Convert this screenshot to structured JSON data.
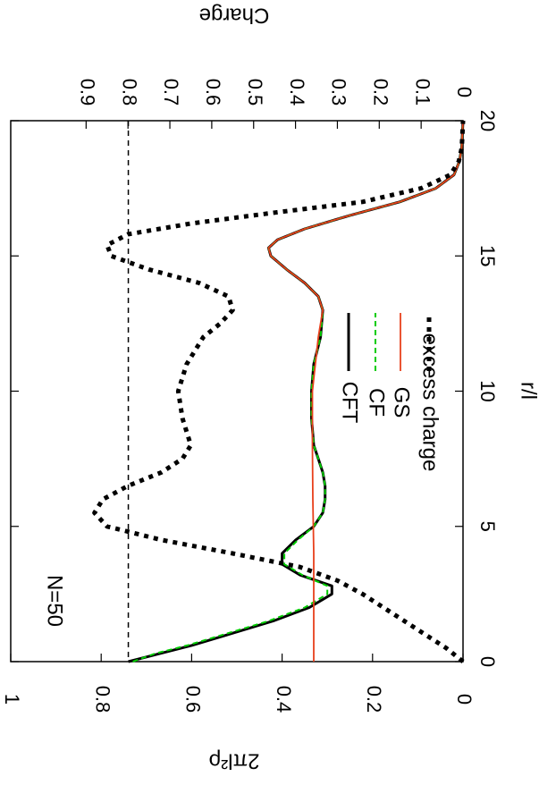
{
  "chart_data": {
    "type": "line",
    "orientation": "rotated-90-clockwise",
    "annotation": "N=50",
    "xlabel": "r/l",
    "ylabel": "2πl²ρ",
    "y2label": "Charge",
    "xlim": [
      0,
      20
    ],
    "ylim": [
      0,
      1
    ],
    "y2lim": [
      0,
      0.9
    ],
    "x_ticks": [
      0,
      5,
      10,
      15,
      20
    ],
    "y_ticks": [
      0,
      0.2,
      0.4,
      0.6,
      0.8,
      1
    ],
    "y2_ticks": [
      0,
      0.1,
      0.2,
      0.3,
      0.4,
      0.5,
      0.6,
      0.7,
      0.8,
      0.9
    ],
    "x_tick_labels": [
      "0",
      "5",
      "10",
      "15",
      "20"
    ],
    "y_tick_labels": [
      "0",
      "0.2",
      "0.4",
      "0.6",
      "0.8",
      "1"
    ],
    "y2_tick_labels": [
      "0",
      "0.1",
      "0.2",
      "0.3",
      "0.4",
      "0.5",
      "0.6",
      "0.7",
      "0.8",
      "0.9"
    ],
    "reference_line": {
      "axis": "y",
      "value": 0.74,
      "style": "dashed"
    },
    "grid": false,
    "legend_position": "center-right",
    "series": [
      {
        "name": "CFT",
        "axis": "y",
        "color": "#000000",
        "style": "solid",
        "x": [
          0,
          0.3,
          0.6,
          1.0,
          1.5,
          2.0,
          2.5,
          2.8,
          3.2,
          3.6,
          4.0,
          4.5,
          5.0,
          5.5,
          6.0,
          6.5,
          7.0,
          7.5,
          8.0,
          9.0,
          10.0,
          11.0,
          12.0,
          13.0,
          13.5,
          14.0,
          14.5,
          15.0,
          15.3,
          15.6,
          16.0,
          16.5,
          17.0,
          17.5,
          18.0,
          18.5,
          19.0,
          20.0
        ],
        "y": [
          0.74,
          0.67,
          0.6,
          0.52,
          0.42,
          0.34,
          0.29,
          0.29,
          0.36,
          0.4,
          0.4,
          0.37,
          0.33,
          0.31,
          0.305,
          0.305,
          0.31,
          0.32,
          0.33,
          0.335,
          0.335,
          0.33,
          0.315,
          0.31,
          0.32,
          0.35,
          0.39,
          0.425,
          0.43,
          0.41,
          0.35,
          0.25,
          0.14,
          0.06,
          0.02,
          0.008,
          0.003,
          0
        ]
      },
      {
        "name": "CF",
        "axis": "y",
        "color": "#00cc00",
        "style": "dashed",
        "x": [
          0,
          0.3,
          0.6,
          1.0,
          1.5,
          2.0,
          2.5,
          2.8,
          3.2,
          3.6,
          4.0,
          4.5,
          5.0,
          5.5,
          6.0,
          6.5,
          7.0,
          7.5,
          8.0,
          9.0,
          10.0,
          11.0,
          12.0,
          13.0,
          13.5,
          14.0,
          14.5,
          15.0,
          15.3,
          15.6,
          16.0,
          16.5,
          17.0,
          17.5,
          18.0,
          18.5,
          19.0,
          20.0
        ],
        "y": [
          0.73,
          0.68,
          0.61,
          0.53,
          0.43,
          0.35,
          0.3,
          0.3,
          0.355,
          0.395,
          0.395,
          0.365,
          0.33,
          0.31,
          0.305,
          0.305,
          0.31,
          0.32,
          0.33,
          0.335,
          0.335,
          0.33,
          0.315,
          0.31,
          0.32,
          0.35,
          0.39,
          0.425,
          0.43,
          0.41,
          0.35,
          0.25,
          0.14,
          0.06,
          0.02,
          0.008,
          0.003,
          0
        ]
      },
      {
        "name": "GS",
        "axis": "y",
        "color": "#e8401c",
        "style": "solid",
        "x": [
          0,
          2.0,
          4.0,
          6.0,
          8.0,
          10.0,
          12.0,
          13.0,
          13.5,
          14.0,
          14.5,
          15.0,
          15.3,
          15.6,
          16.0,
          16.5,
          17.0,
          17.5,
          18.0,
          18.5,
          19.0,
          20.0
        ],
        "y": [
          0.33,
          0.33,
          0.33,
          0.332,
          0.333,
          0.333,
          0.32,
          0.31,
          0.32,
          0.35,
          0.39,
          0.425,
          0.43,
          0.41,
          0.35,
          0.25,
          0.14,
          0.06,
          0.02,
          0.008,
          0.003,
          0
        ]
      },
      {
        "name": "excess charge",
        "axis": "y2",
        "color": "#000000",
        "style": "dotted",
        "x": [
          0,
          0.5,
          1.0,
          1.5,
          2.0,
          2.5,
          3.0,
          3.5,
          4.0,
          4.5,
          5.0,
          5.5,
          6.0,
          6.5,
          7.0,
          7.5,
          8.0,
          8.5,
          9.0,
          10.0,
          11.0,
          12.0,
          12.5,
          13.0,
          13.5,
          14.0,
          14.5,
          15.0,
          15.4,
          15.8,
          16.2,
          16.6,
          17.0,
          17.5,
          18.0,
          18.5,
          19.0,
          20.0
        ],
        "y": [
          0.0,
          0.04,
          0.09,
          0.14,
          0.19,
          0.24,
          0.3,
          0.39,
          0.55,
          0.72,
          0.85,
          0.88,
          0.86,
          0.8,
          0.72,
          0.67,
          0.65,
          0.66,
          0.67,
          0.68,
          0.66,
          0.62,
          0.58,
          0.55,
          0.56,
          0.63,
          0.75,
          0.84,
          0.85,
          0.8,
          0.65,
          0.45,
          0.24,
          0.1,
          0.03,
          0.01,
          0.003,
          0.0
        ]
      }
    ]
  }
}
